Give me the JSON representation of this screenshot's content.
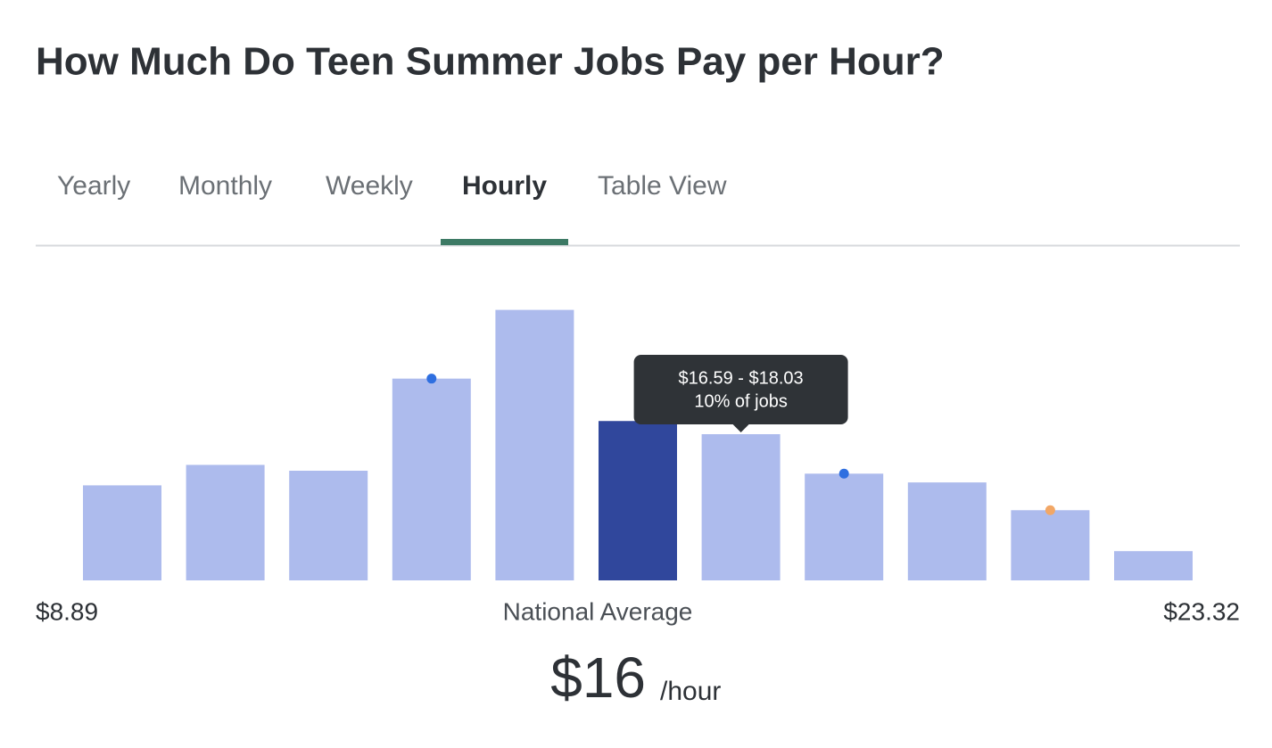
{
  "header": {
    "title": "How Much Do Teen Summer Jobs Pay per Hour?"
  },
  "tabs": [
    {
      "label": "Yearly"
    },
    {
      "label": "Monthly"
    },
    {
      "label": "Weekly"
    },
    {
      "label": "Hourly",
      "selected": true
    },
    {
      "label": "Table View"
    }
  ],
  "chart_data": {
    "type": "bar",
    "categories": [
      null,
      null,
      null,
      null,
      null,
      null,
      null,
      null,
      null,
      null,
      null
    ],
    "values": [
      6.5,
      7.9,
      7.5,
      13.8,
      18.5,
      10.9,
      10,
      7.3,
      6.7,
      4.8,
      2.0
    ],
    "value_labels": [
      null,
      null,
      null,
      null,
      null,
      null,
      "10% of jobs",
      null,
      null,
      null,
      null
    ],
    "range_labels": [
      null,
      null,
      null,
      null,
      null,
      null,
      "$16.59 - $18.03",
      null,
      null,
      null,
      null
    ],
    "colors": [
      "#adbbed",
      "#adbbed",
      "#adbbed",
      "#adbbed",
      "#adbbed",
      "#30479c",
      "#adbbed",
      "#adbbed",
      "#adbbed",
      "#adbbed",
      "#adbbed"
    ],
    "marker_colors": [
      null,
      null,
      null,
      "#2f6fe0",
      null,
      null,
      null,
      "#2f6fe0",
      null,
      "#f2a766",
      null
    ],
    "ylim": [
      0,
      20
    ],
    "xlim": [
      8.89,
      23.32
    ],
    "xticks": [
      {
        "value": 8.89,
        "label": "$8.89"
      },
      {
        "value": 23.32,
        "label": "$23.32"
      }
    ],
    "xlabel": "National Average"
  },
  "summary": {
    "value": "$16",
    "unit": "/hour"
  }
}
